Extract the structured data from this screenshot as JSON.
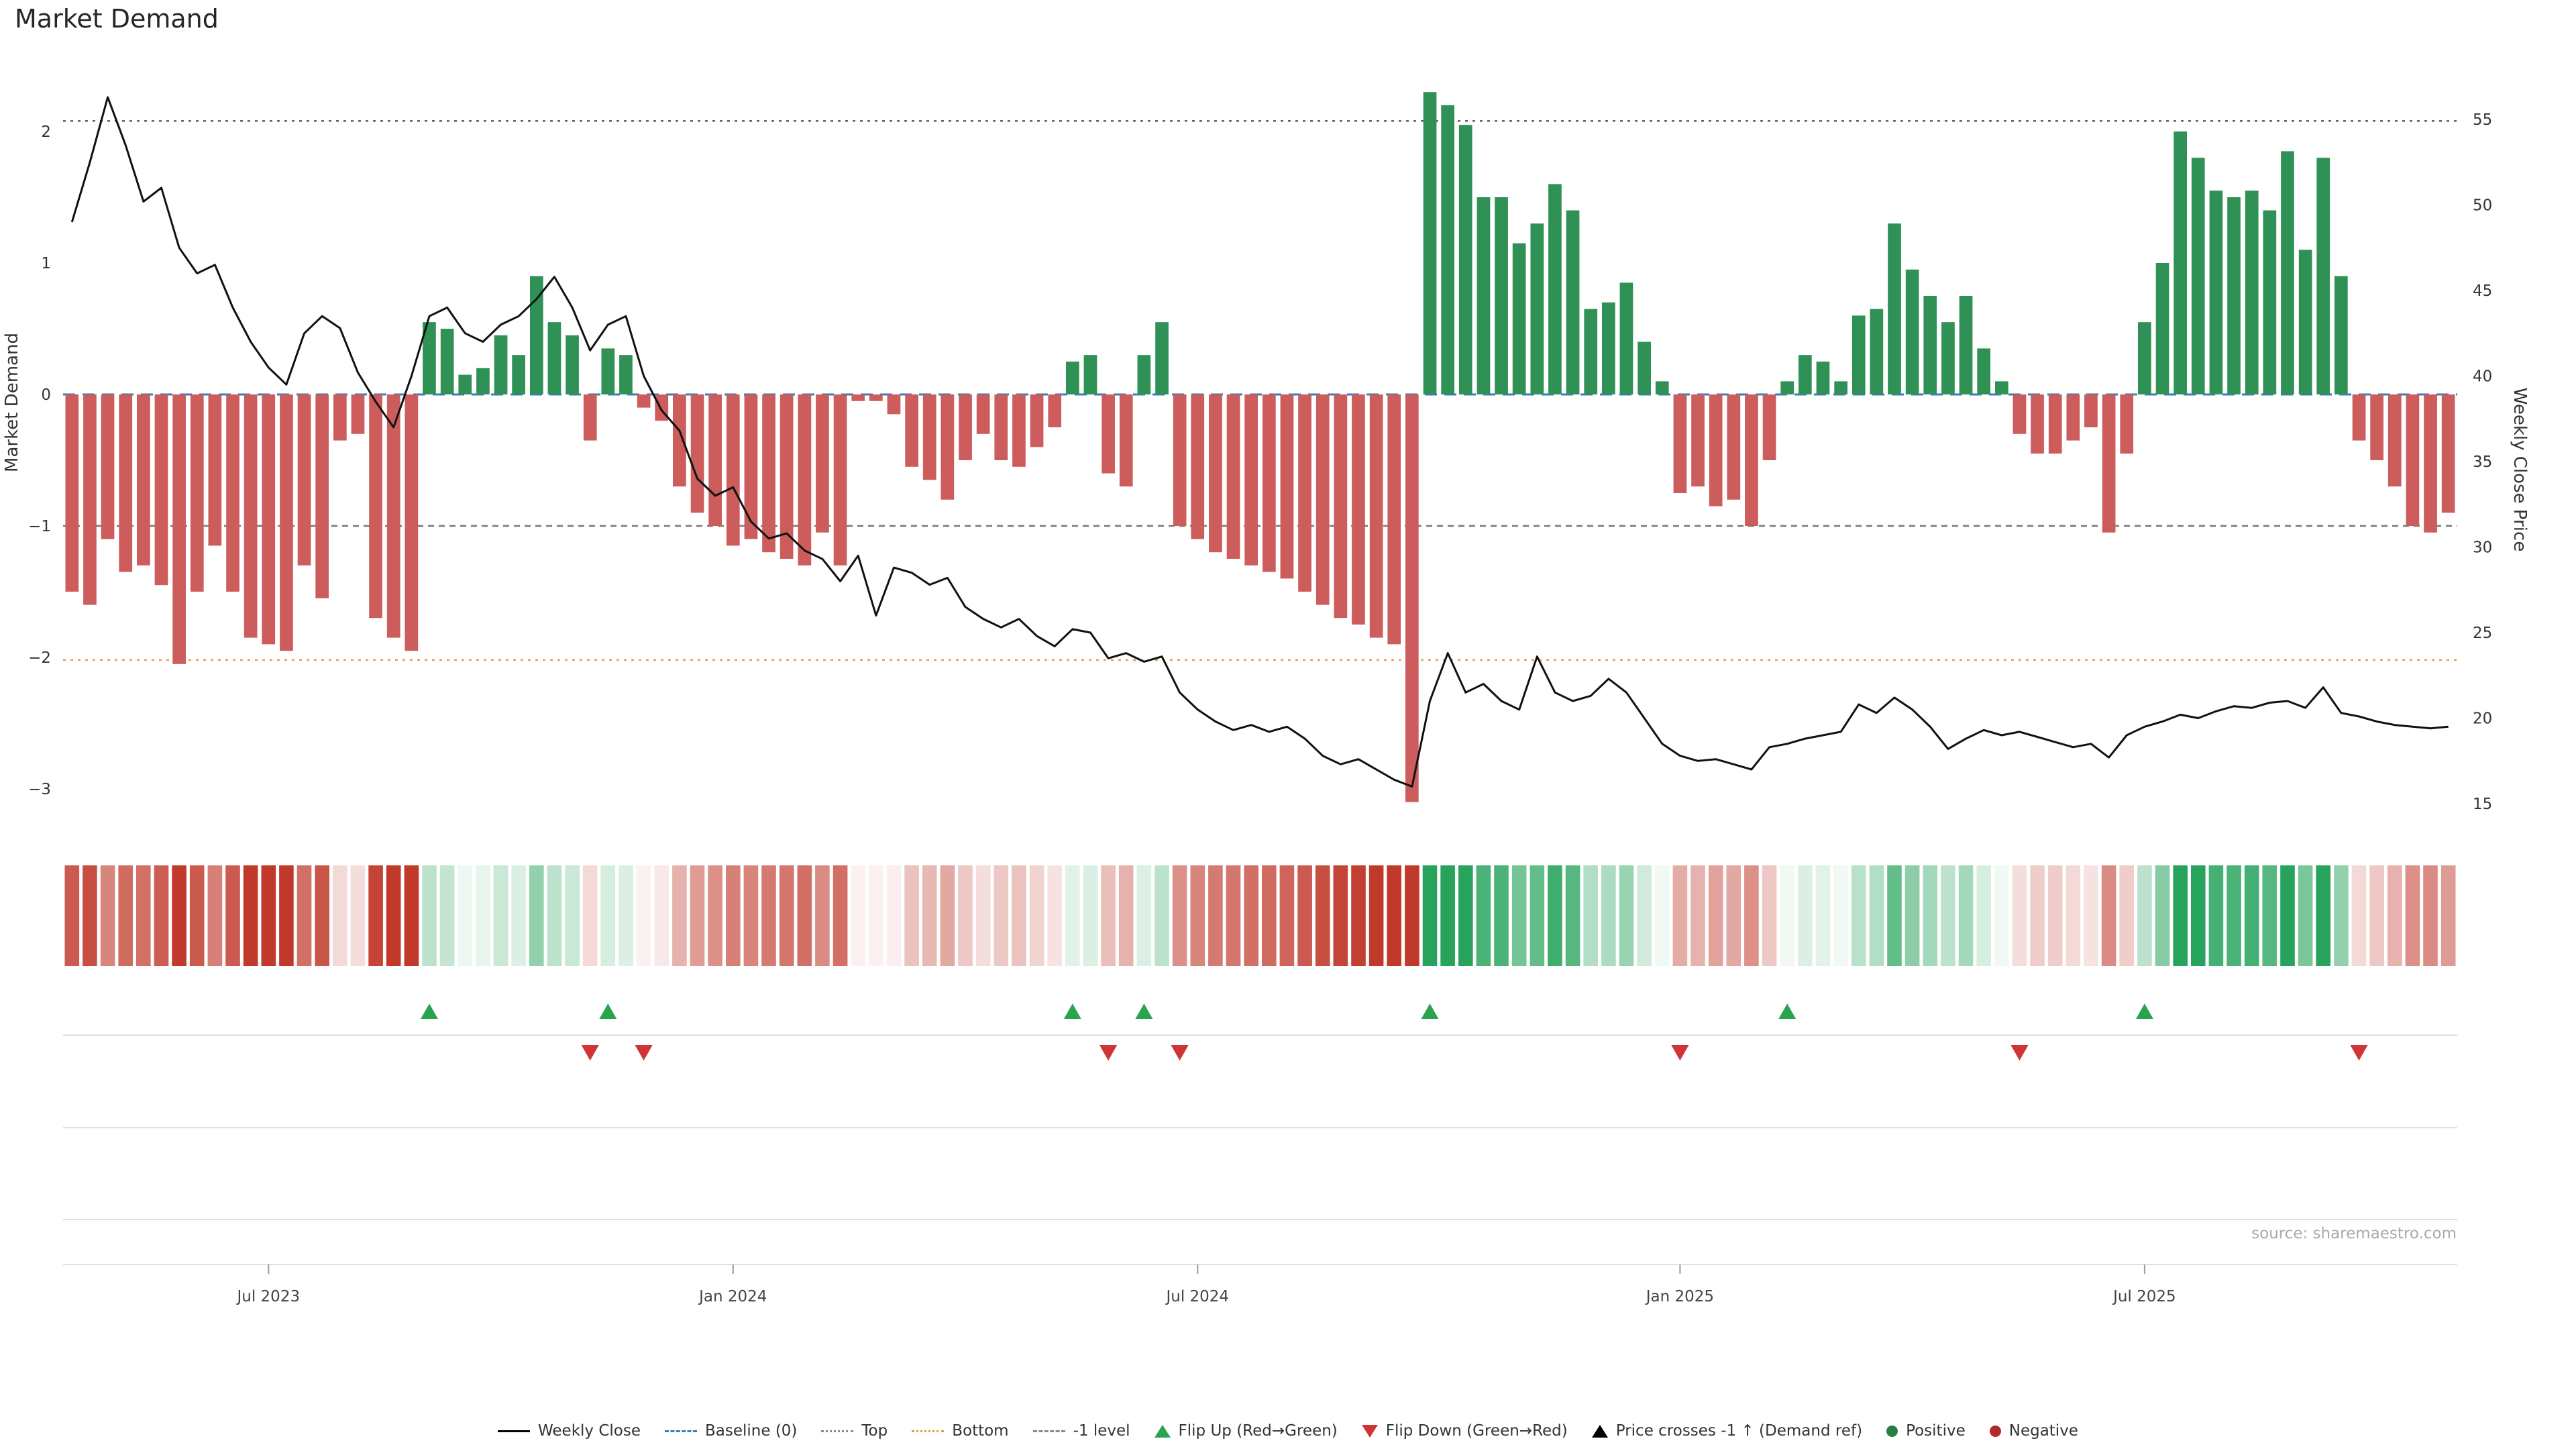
{
  "page": {
    "title": "Market Demand",
    "background": "#ffffff"
  },
  "chart_data": {
    "type": "combo-bar-line",
    "title": "Market Demand",
    "source": "source: sharemaestro.com",
    "left_axis": {
      "label": "Market Demand",
      "range": [
        -3.4,
        2.6
      ],
      "ticks": [
        {
          "label": "2",
          "value": 2
        },
        {
          "label": "1",
          "value": 1
        },
        {
          "label": "0",
          "value": 0
        },
        {
          "label": "−1",
          "value": -1
        },
        {
          "label": "−2",
          "value": -2
        },
        {
          "label": "−3",
          "value": -3
        }
      ]
    },
    "right_axis": {
      "label": "Weekly Close Price",
      "range": [
        14.2,
        57.0
      ],
      "ticks": [
        {
          "label": "55",
          "value": 55
        },
        {
          "label": "50",
          "value": 50
        },
        {
          "label": "45",
          "value": 45
        },
        {
          "label": "40",
          "value": 40
        },
        {
          "label": "35",
          "value": 35
        },
        {
          "label": "30",
          "value": 30
        },
        {
          "label": "25",
          "value": 25
        },
        {
          "label": "20",
          "value": 20
        },
        {
          "label": "15",
          "value": 15
        }
      ]
    },
    "x_ticks": [
      {
        "label": "Jul 2023",
        "week": 11
      },
      {
        "label": "Jan 2024",
        "week": 37
      },
      {
        "label": "Jul 2024",
        "week": 63
      },
      {
        "label": "Jan 2025",
        "week": 90
      },
      {
        "label": "Jul 2025",
        "week": 116
      }
    ],
    "levels": {
      "baseline": 0,
      "top": 2.08,
      "bottom": -2.02,
      "minus1": -1
    },
    "series": [
      {
        "name": "Market Demand",
        "type": "bar",
        "values": [
          -1.5,
          -1.6,
          -1.1,
          -1.35,
          -1.3,
          -1.45,
          -2.05,
          -1.5,
          -1.15,
          -1.5,
          -1.85,
          -1.9,
          -1.95,
          -1.3,
          -1.55,
          -0.35,
          -0.3,
          -1.7,
          -1.85,
          -1.95,
          0.55,
          0.5,
          0.15,
          0.2,
          0.45,
          0.3,
          0.9,
          0.55,
          0.45,
          -0.35,
          0.35,
          0.3,
          -0.1,
          -0.2,
          -0.7,
          -0.9,
          -1.0,
          -1.15,
          -1.1,
          -1.2,
          -1.25,
          -1.3,
          -1.05,
          -1.3,
          -0.05,
          -0.05,
          -0.15,
          -0.55,
          -0.65,
          -0.8,
          -0.5,
          -0.3,
          -0.5,
          -0.55,
          -0.4,
          -0.25,
          0.25,
          0.3,
          -0.6,
          -0.7,
          0.3,
          0.55,
          -1.0,
          -1.1,
          -1.2,
          -1.25,
          -1.3,
          -1.35,
          -1.4,
          -1.5,
          -1.6,
          -1.7,
          -1.75,
          -1.85,
          -1.9,
          -3.1,
          2.3,
          2.2,
          2.05,
          1.5,
          1.5,
          1.15,
          1.3,
          1.6,
          1.4,
          0.65,
          0.7,
          0.85,
          0.4,
          0.1,
          -0.75,
          -0.7,
          -0.85,
          -0.8,
          -1.0,
          -0.5,
          0.1,
          0.3,
          0.25,
          0.1,
          0.6,
          0.65,
          1.3,
          0.95,
          0.75,
          0.55,
          0.75,
          0.35,
          0.1,
          -0.3,
          -0.45,
          -0.45,
          -0.35,
          -0.25,
          -1.05,
          -0.45,
          0.55,
          1.0,
          2.0,
          1.8,
          1.55,
          1.5,
          1.55,
          1.4,
          1.85,
          1.1,
          1.8,
          0.9,
          -0.35,
          -0.5,
          -0.7,
          -1.0,
          -1.05,
          -0.9
        ]
      },
      {
        "name": "Weekly Close",
        "type": "line",
        "values": [
          49.0,
          52.5,
          56.3,
          53.5,
          50.2,
          51.0,
          47.5,
          46.0,
          46.5,
          44.0,
          42.0,
          40.5,
          39.5,
          42.5,
          43.5,
          42.8,
          40.2,
          38.5,
          37.0,
          40.0,
          43.5,
          44.0,
          42.5,
          42.0,
          43.0,
          43.5,
          44.5,
          45.8,
          44.0,
          41.5,
          43.0,
          43.5,
          40.0,
          38.0,
          36.8,
          34.0,
          33.0,
          33.5,
          31.5,
          30.5,
          30.8,
          29.8,
          29.3,
          28.0,
          29.5,
          26.0,
          28.8,
          28.5,
          27.8,
          28.2,
          26.5,
          25.8,
          25.3,
          25.8,
          24.8,
          24.2,
          25.2,
          25.0,
          23.5,
          23.8,
          23.3,
          23.6,
          21.5,
          20.5,
          19.8,
          19.3,
          19.6,
          19.2,
          19.5,
          18.8,
          17.8,
          17.3,
          17.6,
          17.0,
          16.4,
          16.0,
          21.0,
          23.8,
          21.5,
          22.0,
          21.0,
          20.5,
          23.6,
          21.5,
          21.0,
          21.3,
          22.3,
          21.5,
          20.0,
          18.5,
          17.8,
          17.5,
          17.6,
          17.3,
          17.0,
          18.3,
          18.5,
          18.8,
          19.0,
          19.2,
          20.8,
          20.3,
          21.2,
          20.5,
          19.5,
          18.2,
          18.8,
          19.3,
          19.0,
          19.2,
          18.9,
          18.6,
          18.3,
          18.5,
          17.7,
          19.0,
          19.5,
          19.8,
          20.2,
          20.0,
          20.4,
          20.7,
          20.6,
          20.9,
          21.0,
          20.6,
          21.8,
          20.3,
          20.1,
          19.8,
          19.6,
          19.5,
          19.4,
          19.5
        ]
      }
    ],
    "flip_up_weeks": [
      20,
      30,
      56,
      60,
      76,
      96,
      116
    ],
    "flip_down_weeks": [
      29,
      32,
      58,
      62,
      90,
      109,
      128
    ],
    "colors": {
      "bar_positive": "#2f9155",
      "bar_negative": "#cd5c5c",
      "heat_positive": "#27a35c",
      "heat_negative": "#c0392b",
      "price_line": "#111111",
      "baseline": "#377eb8",
      "top_line": "#555555",
      "minus1_line": "#777777",
      "bottom_line": "#e0a03c",
      "flip_up": "#2aa34f",
      "flip_down": "#d03434"
    }
  },
  "legend": [
    {
      "label": "Weekly Close",
      "swatch": "line",
      "style": "solid",
      "color": "#000000"
    },
    {
      "label": "Baseline (0)",
      "swatch": "line",
      "style": "dashed",
      "color": "#377eb8"
    },
    {
      "label": "Top",
      "swatch": "line",
      "style": "dotted",
      "color": "#888888"
    },
    {
      "label": "Bottom",
      "swatch": "line",
      "style": "dotted",
      "color": "#e0a03c"
    },
    {
      "label": "-1 level",
      "swatch": "line",
      "style": "dashed",
      "color": "#888888"
    },
    {
      "label": "Flip Up (Red→Green)",
      "swatch": "triangle-up",
      "color": "#2aa34f"
    },
    {
      "label": "Flip Down (Green→Red)",
      "swatch": "triangle-down",
      "color": "#d03434"
    },
    {
      "label": "Price crosses -1 ↑ (Demand ref)",
      "swatch": "triangle-up",
      "color": "#000000"
    },
    {
      "label": "Positive",
      "swatch": "dot",
      "color": "#2a7d43"
    },
    {
      "label": "Negative",
      "swatch": "dot",
      "color": "#b02a2a"
    }
  ]
}
